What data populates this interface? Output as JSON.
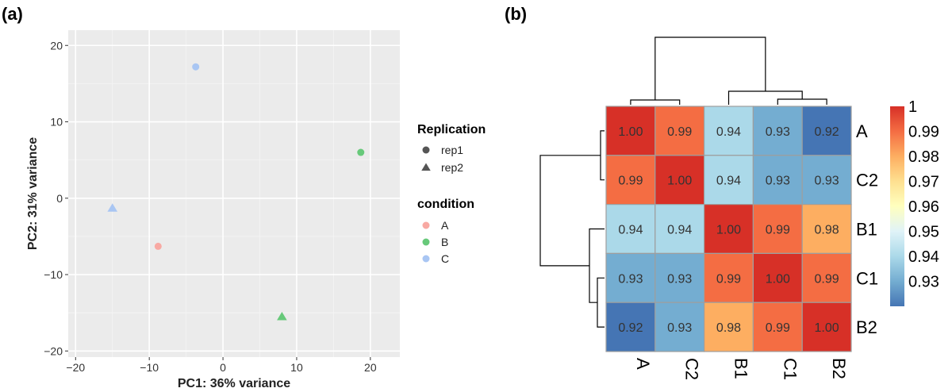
{
  "panels": {
    "a": "(a)",
    "b": "(b)"
  },
  "chart_data": [
    {
      "type": "scatter",
      "title": "",
      "xlabel": "PC1: 36% variance",
      "ylabel": "PC2: 31% variance",
      "xlim": [
        -21,
        24
      ],
      "ylim": [
        -20.8,
        22
      ],
      "x_ticks": [
        -20,
        -10,
        0,
        10,
        20
      ],
      "y_ticks": [
        -20,
        -10,
        0,
        10,
        20
      ],
      "x_tick_labels": [
        "−20",
        "−10",
        "0",
        "10",
        "20"
      ],
      "y_tick_labels": [
        "−20",
        "−10",
        "0",
        "10",
        "20"
      ],
      "grid": true,
      "background": "#ebebeb",
      "legend_position": "right",
      "legends": [
        {
          "title": "Replication",
          "items": [
            {
              "label": "rep1",
              "shape": "circle"
            },
            {
              "label": "rep2",
              "shape": "triangle"
            }
          ]
        },
        {
          "title": "condition",
          "items": [
            {
              "label": "A",
              "color": "#f8a9a3"
            },
            {
              "label": "B",
              "color": "#67c97a"
            },
            {
              "label": "C",
              "color": "#a9c6f3"
            }
          ]
        }
      ],
      "points": [
        {
          "condition": "C",
          "replication": "rep1",
          "x": -3.7,
          "y": 17.2
        },
        {
          "condition": "B",
          "replication": "rep1",
          "x": 18.7,
          "y": 6.0
        },
        {
          "condition": "C",
          "replication": "rep2",
          "x": -15.0,
          "y": -1.3
        },
        {
          "condition": "A",
          "replication": "rep1",
          "x": -8.8,
          "y": -6.3
        },
        {
          "condition": "B",
          "replication": "rep2",
          "x": 8.0,
          "y": -15.5
        }
      ]
    },
    {
      "type": "heatmap",
      "title": "",
      "rows": [
        "A",
        "C2",
        "B1",
        "C1",
        "B2"
      ],
      "columns": [
        "A",
        "C2",
        "B1",
        "C1",
        "B2"
      ],
      "values": [
        [
          1.0,
          0.99,
          0.94,
          0.93,
          0.92
        ],
        [
          0.99,
          1.0,
          0.94,
          0.93,
          0.93
        ],
        [
          0.94,
          0.94,
          1.0,
          0.99,
          0.98
        ],
        [
          0.93,
          0.93,
          0.99,
          1.0,
          0.99
        ],
        [
          0.92,
          0.93,
          0.98,
          0.99,
          1.0
        ]
      ],
      "cell_labels": [
        [
          "1.00",
          "0.99",
          "0.94",
          "0.93",
          "0.92"
        ],
        [
          "0.99",
          "1.00",
          "0.94",
          "0.93",
          "0.93"
        ],
        [
          "0.94",
          "0.94",
          "1.00",
          "0.99",
          "0.98"
        ],
        [
          "0.93",
          "0.93",
          "0.99",
          "1.00",
          "0.99"
        ],
        [
          "0.92",
          "0.93",
          "0.98",
          "0.99",
          "1.00"
        ]
      ],
      "colorbar": {
        "min": 0.92,
        "max": 1.0,
        "ticks": [
          1.0,
          0.99,
          0.98,
          0.97,
          0.96,
          0.95,
          0.94,
          0.93
        ],
        "tick_labels": [
          "1",
          "0.99",
          "0.98",
          "0.97",
          "0.96",
          "0.95",
          "0.94",
          "0.93"
        ],
        "colors": [
          "#4575b4",
          "#74add1",
          "#abd9e9",
          "#e0f3f8",
          "#ffffbf",
          "#fee090",
          "#fdae61",
          "#f46d43",
          "#d73027"
        ]
      },
      "dendrogram": "hierarchical clustering on rows and columns"
    }
  ]
}
